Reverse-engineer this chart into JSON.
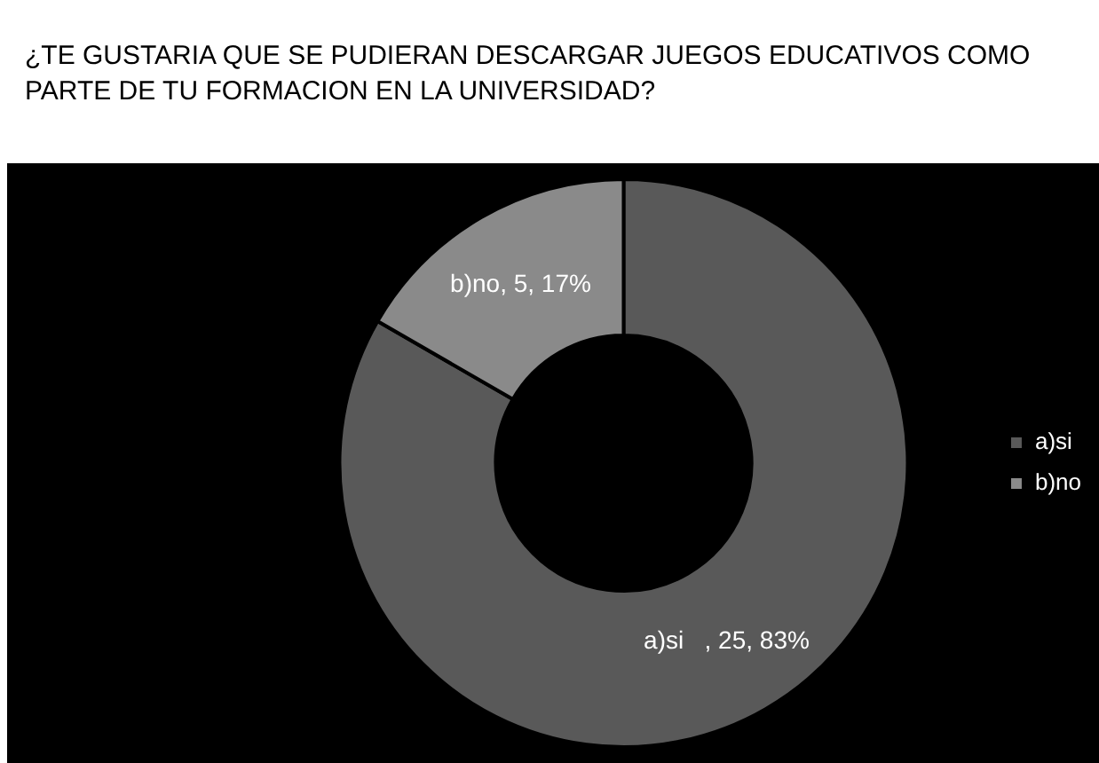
{
  "chart_data": {
    "type": "donut",
    "title": "¿TE GUSTARIA QUE SE PUDIERAN DESCARGAR JUEGOS EDUCATIVOS COMO PARTE DE TU FORMACION EN LA UNIVERSIDAD?",
    "categories": [
      "a)si",
      "b)no"
    ],
    "values": [
      25,
      5
    ],
    "colors": [
      "#595959",
      "#8a8a8a"
    ],
    "value_labels": [
      "a)si   , 25, 83%",
      "b)no, 5, 17%"
    ],
    "legend": "right"
  }
}
